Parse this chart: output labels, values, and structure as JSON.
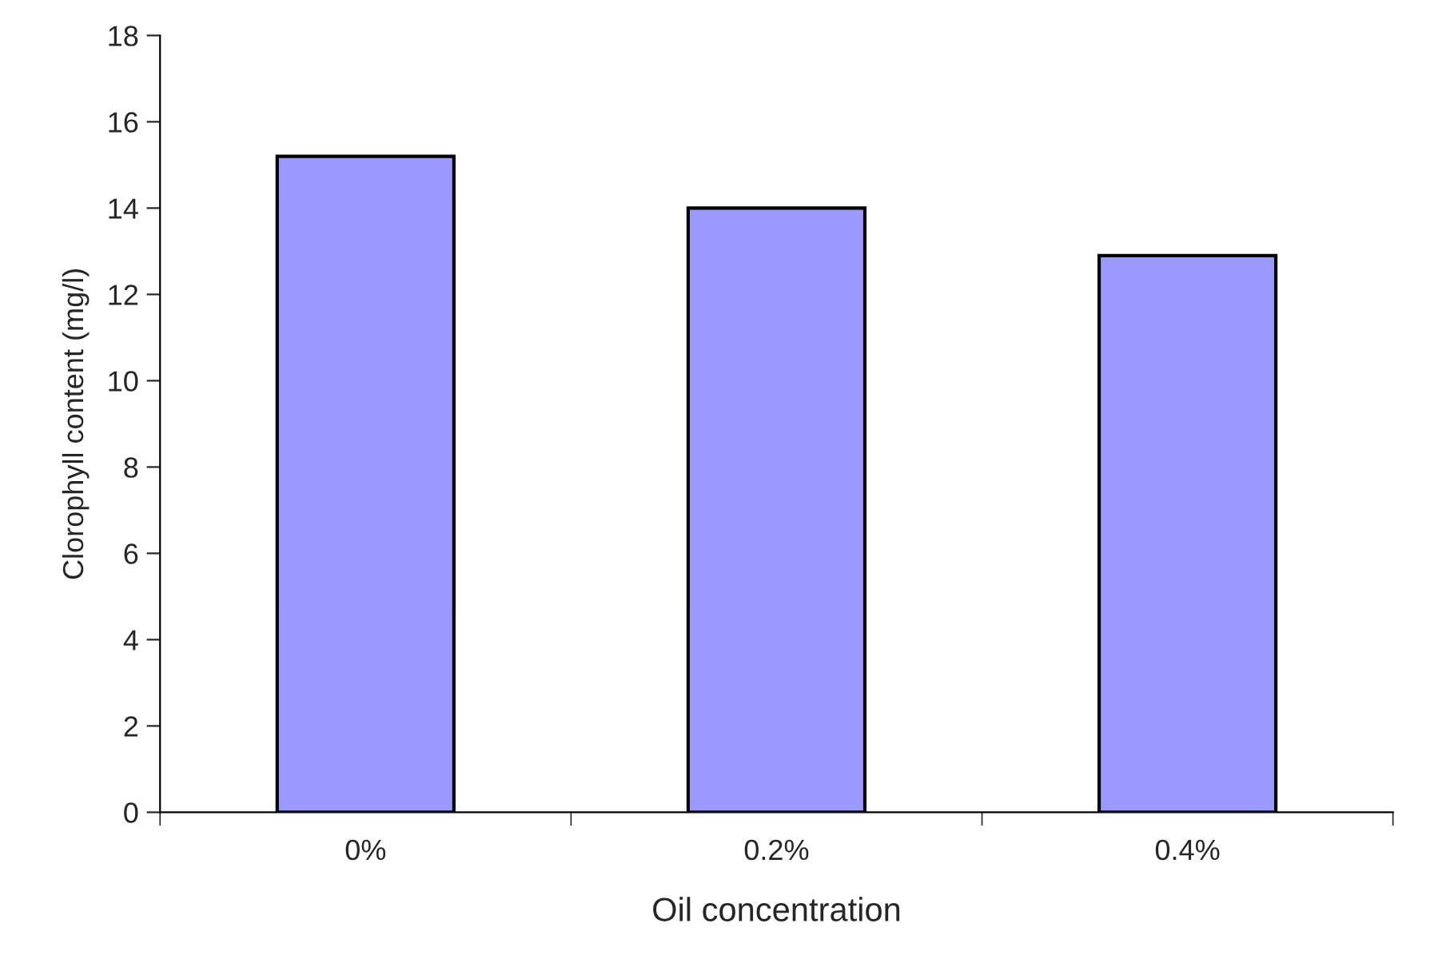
{
  "chart_data": {
    "type": "bar",
    "xlabel": "Oil concentration",
    "ylabel": "Clorophyll content (mg/l)",
    "categories": [
      "0%",
      "0.2%",
      "0.4%"
    ],
    "values": [
      15.2,
      14.0,
      12.9
    ],
    "color": "#9999ff",
    "ylim": [
      0,
      18
    ],
    "yticks": [
      0,
      2,
      4,
      6,
      8,
      10,
      12,
      14,
      16,
      18
    ],
    "grid": false,
    "legend": false
  }
}
